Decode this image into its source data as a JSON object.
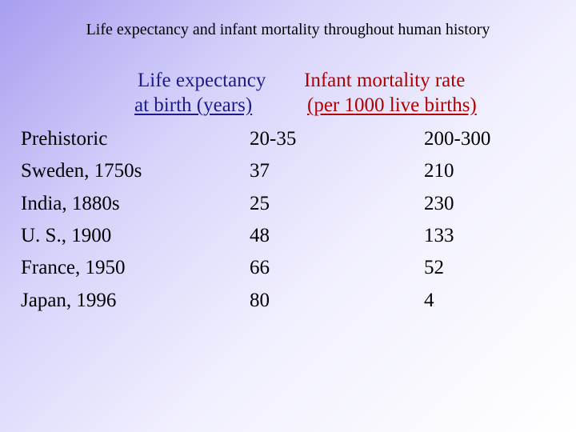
{
  "title": "Life expectancy and infant mortality throughout human history",
  "columns": {
    "life_expectancy": {
      "line1": "Life expectancy",
      "line2": "at birth (years)"
    },
    "infant_mortality": {
      "line1": "Infant mortality rate",
      "line2": "(per 1000 live births)"
    }
  },
  "rows": [
    {
      "label": "Prehistoric",
      "life_expectancy": "20-35",
      "infant_mortality": "200-300"
    },
    {
      "label": "Sweden, 1750s",
      "life_expectancy": "37",
      "infant_mortality": "210"
    },
    {
      "label": "India, 1880s",
      "life_expectancy": "25",
      "infant_mortality": "230"
    },
    {
      "label": "U. S., 1900",
      "life_expectancy": "48",
      "infant_mortality": "133"
    },
    {
      "label": "France, 1950",
      "life_expectancy": "66",
      "infant_mortality": "52"
    },
    {
      "label": "Japan, 1996",
      "life_expectancy": "80",
      "infant_mortality": "4"
    }
  ]
}
